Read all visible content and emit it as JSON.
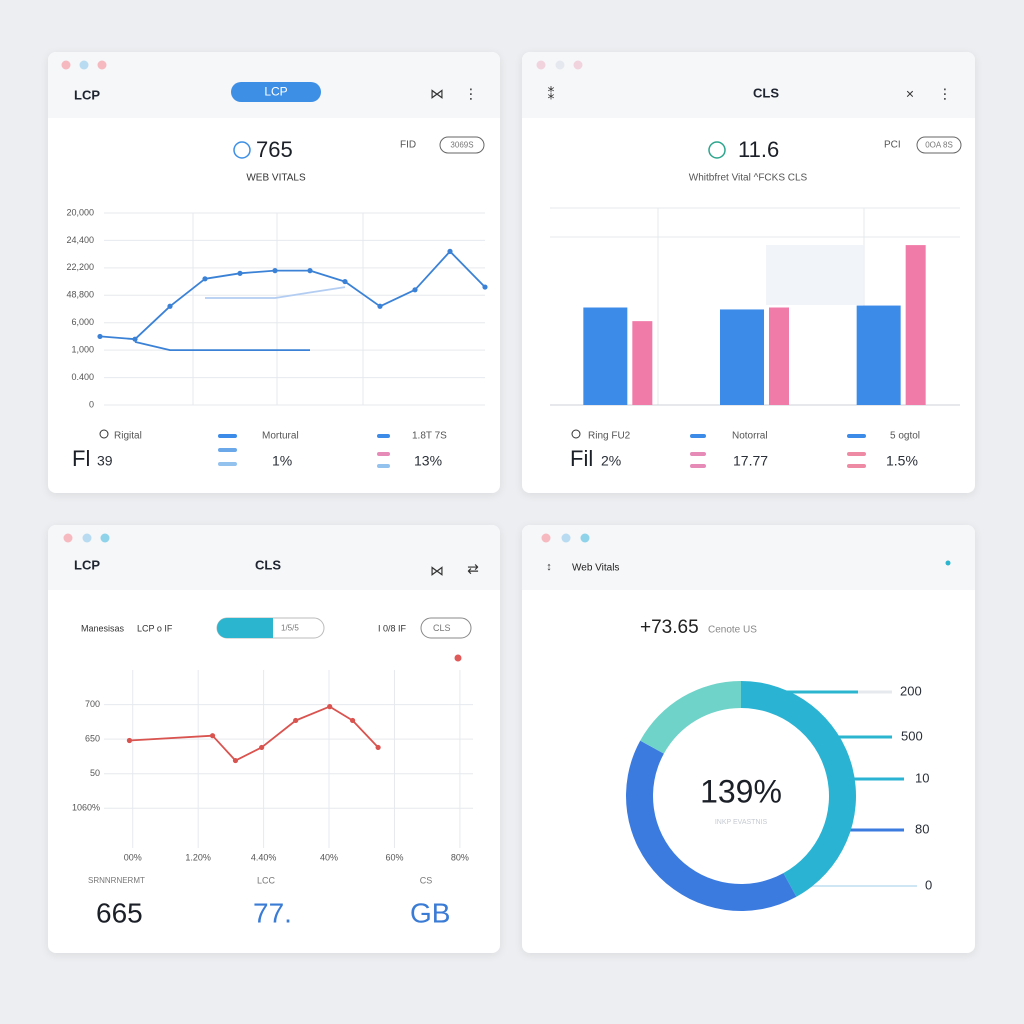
{
  "panels": [
    {
      "tab": "LCP",
      "pill": "LCP",
      "metric": "765",
      "metric_side": "FID",
      "badge": "3069S",
      "subtitle": "WEB VITALS",
      "footer": [
        {
          "label": "Rigital",
          "value_big": "Fl",
          "value_small": "39"
        },
        {
          "label": "Mortural",
          "value": "1%"
        },
        {
          "label": "1.8T 7S",
          "value": "13%"
        }
      ]
    },
    {
      "title": "CLS",
      "metric": "11.6",
      "metric_side": "PCI",
      "badge": "0OA 8S",
      "subtitle": "Whitbfret Vital ^FCKS CLS",
      "footer": [
        {
          "label": "Ring FU2",
          "value_big": "Fil",
          "value_small": "2%"
        },
        {
          "label": "Notorral",
          "value": "17.77"
        },
        {
          "label": "5 ogtol",
          "value": "1.5%"
        }
      ]
    },
    {
      "tab": "LCP",
      "title": "CLS",
      "controls": [
        "Manesisas",
        "LCP o IF",
        "1/5/5",
        "I 0/8 IF",
        "CLS"
      ],
      "footer": [
        {
          "label": "SRNNRNERMT",
          "value": "665"
        },
        {
          "label": "LCC",
          "value": "77."
        },
        {
          "label": "CS",
          "value": "GB"
        }
      ]
    },
    {
      "title": "Web Vitals",
      "metric": "+73.65",
      "metric_side": "Cenote US",
      "scale": [
        "200",
        "500",
        "10",
        "80",
        "0"
      ]
    }
  ],
  "chart_data": [
    {
      "type": "line",
      "categories": [
        null,
        null,
        null,
        null,
        null,
        null,
        null,
        null,
        null,
        null,
        null,
        null
      ],
      "series": [
        {
          "color": "#3b82d6",
          "values": [
            2.5,
            2.4,
            3.6,
            4.6,
            4.8,
            4.9,
            4.9,
            4.5,
            3.6,
            4.2,
            5.6,
            4.3
          ]
        },
        {
          "color": "#3b82d6",
          "values": [
            null,
            2.3,
            2.0,
            2.0,
            2.0,
            2.0,
            2.0,
            null,
            null,
            null,
            null,
            null
          ]
        },
        {
          "color": "#b3cdf2",
          "values": [
            null,
            null,
            null,
            3.9,
            3.9,
            3.9,
            4.1,
            4.3,
            null,
            null,
            null,
            null
          ]
        }
      ],
      "ylim": [
        0,
        7
      ],
      "yticks": [
        {
          "value": 0,
          "label": "0"
        },
        {
          "value": 1,
          "label": "0.400"
        },
        {
          "value": 2,
          "label": "1,000"
        },
        {
          "value": 3,
          "label": "6,000"
        },
        {
          "value": 4,
          "label": "48,800"
        },
        {
          "value": 5,
          "label": "22,200"
        },
        {
          "value": 6,
          "label": "24,400"
        },
        {
          "value": 7,
          "label": "20,000"
        }
      ],
      "grid": true
    },
    {
      "type": "bar",
      "categories": [
        null,
        null,
        null
      ],
      "series": [
        {
          "color": "#3d8be8",
          "values": [
            50,
            49,
            51
          ]
        },
        {
          "color": "#f07aa8",
          "values": [
            43,
            50,
            82
          ]
        }
      ],
      "ylim": [
        0,
        100
      ]
    },
    {
      "type": "line",
      "x": [
        -0.05,
        1.22,
        1.57,
        1.97,
        2.49,
        3.01,
        3.36,
        3.75
      ],
      "series": [
        {
          "color": "#d9534f",
          "values": [
            1.96,
            2.1,
            1.38,
            1.76,
            2.54,
            2.94,
            2.54,
            1.76
          ]
        }
      ],
      "xlim": [
        -0.5,
        5.2
      ],
      "xticks": [
        {
          "value": 0,
          "label": "00%"
        },
        {
          "value": 1,
          "label": "1.20%"
        },
        {
          "value": 2,
          "label": "4.40%"
        },
        {
          "value": 3,
          "label": "40%"
        },
        {
          "value": 4,
          "label": "60%"
        },
        {
          "value": 5,
          "label": "80%"
        }
      ],
      "ylim": [
        -1.15,
        4
      ],
      "yticks": [
        {
          "value": 0,
          "label": "1060%"
        },
        {
          "value": 1,
          "label": "50"
        },
        {
          "value": 2,
          "label": "650"
        },
        {
          "value": 3,
          "label": "700"
        }
      ],
      "grid": true
    },
    {
      "type": "pie",
      "donut": true,
      "values": [
        42,
        41,
        17
      ],
      "colors": [
        "#2ab3d3",
        "#3b7be0",
        "#6fd3c9"
      ],
      "center_label": "139%",
      "center_sublabel": "INKP EVASTNIS"
    }
  ]
}
